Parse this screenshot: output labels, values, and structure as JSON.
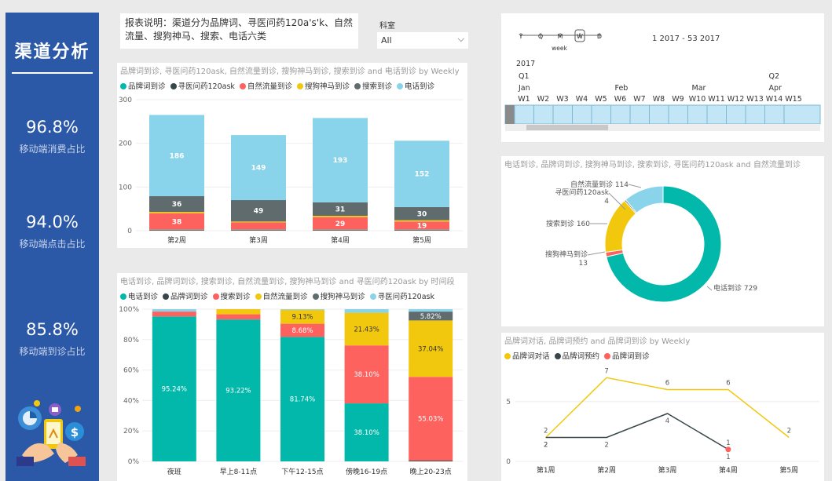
{
  "sidebar": {
    "title": "渠道分析",
    "kpis": [
      {
        "value": "96.8%",
        "label": "移动端消费占比"
      },
      {
        "value": "94.0%",
        "label": "移动端点击占比"
      },
      {
        "value": "85.8%",
        "label": "移动端到诊占比"
      }
    ]
  },
  "description": "报表说明：渠道分为品牌词、寻医问药120a's'k、自然流量、搜狗神马、搜索、电话六类",
  "filter": {
    "label": "科室",
    "value": "All"
  },
  "timeline": {
    "granularity": [
      "Y",
      "Q",
      "M",
      "W",
      "D"
    ],
    "active": "W",
    "unit": "week",
    "range": "1 2017 - 53 2017",
    "year": "2017",
    "quarters": [
      {
        "label": "Q1"
      },
      {
        "label": "Q2"
      }
    ],
    "months": [
      "Jan",
      "Feb",
      "Mar",
      "Apr"
    ],
    "weeks": [
      "W1",
      "W2",
      "W3",
      "W4",
      "W5",
      "W6",
      "W7",
      "W8",
      "W9",
      "W10",
      "W11",
      "W12",
      "W13",
      "W14",
      "W15"
    ]
  },
  "colors": {
    "teal": "#01b8aa",
    "dark": "#374649",
    "red": "#fd625e",
    "yellow": "#f2c80f",
    "gray": "#5f6b6d",
    "lightblue": "#8ad4eb"
  },
  "chart_data": [
    {
      "type": "bar",
      "title": "品牌词到诊, 寻医问药120ask, 自然流量到诊, 搜狗神马到诊, 搜索到诊 and 电话到诊 by Weekly",
      "categories": [
        "第2周",
        "第3周",
        "第4周",
        "第5周"
      ],
      "stacked": true,
      "ylim": [
        0,
        300
      ],
      "yticks": [
        0,
        100,
        200,
        300
      ],
      "series": [
        {
          "name": "品牌词到诊",
          "color": "#01b8aa",
          "values": [
            1,
            1,
            1,
            1
          ]
        },
        {
          "name": "寻医问药120ask",
          "color": "#374649",
          "values": [
            1,
            1,
            1,
            1
          ]
        },
        {
          "name": "自然流量到诊",
          "color": "#fd625e",
          "values": [
            38,
            17,
            29,
            19
          ],
          "labels": [
            "38",
            "",
            "29",
            "19"
          ]
        },
        {
          "name": "搜狗神马到诊",
          "color": "#f2c80f",
          "values": [
            3,
            2,
            3,
            3
          ]
        },
        {
          "name": "搜索到诊",
          "color": "#5f6b6d",
          "values": [
            36,
            49,
            31,
            30
          ],
          "labels": [
            "36",
            "49",
            "31",
            "30"
          ]
        },
        {
          "name": "电话到诊",
          "color": "#8ad4eb",
          "values": [
            186,
            149,
            193,
            152
          ],
          "labels": [
            "186",
            "149",
            "193",
            "152"
          ]
        }
      ]
    },
    {
      "type": "bar",
      "title": "电话到诊, 品牌词到诊, 搜索到诊, 自然流量到诊, 搜狗神马到诊 and 寻医问药120ask by 时间段",
      "categories": [
        "夜班",
        "早上8-11点",
        "下午12-15点",
        "傍晚16-19点",
        "晚上20-23点"
      ],
      "stacked": "percent",
      "yticks": [
        "0%",
        "20%",
        "40%",
        "60%",
        "80%",
        "100%"
      ],
      "series": [
        {
          "name": "电话到诊",
          "color": "#01b8aa",
          "values": [
            95.24,
            93.22,
            81.74,
            38.1,
            0
          ],
          "labels": [
            "95.24%",
            "93.22%",
            "81.74%",
            "38.10%",
            ""
          ]
        },
        {
          "name": "品牌词到诊",
          "color": "#374649",
          "values": [
            0,
            0,
            0,
            0,
            0.5
          ]
        },
        {
          "name": "搜索到诊",
          "color": "#fd625e",
          "values": [
            3.17,
            3.39,
            8.68,
            38.1,
            55.03
          ],
          "labels": [
            "",
            "",
            "8.68%",
            "38.10%",
            "55.03%"
          ]
        },
        {
          "name": "自然流量到诊",
          "color": "#f2c80f",
          "values": [
            0,
            3.39,
            9.13,
            21.43,
            37.04
          ],
          "labels": [
            "",
            "",
            "9.13%",
            "21.43%",
            "37.04%"
          ]
        },
        {
          "name": "搜狗神马到诊",
          "color": "#5f6b6d",
          "values": [
            0,
            0,
            0,
            0,
            5.82
          ],
          "labels": [
            "",
            "",
            "",
            "",
            "5.82%"
          ]
        },
        {
          "name": "寻医问药120ask",
          "color": "#8ad4eb",
          "values": [
            1.59,
            0,
            0.45,
            2.37,
            1.61
          ]
        }
      ]
    },
    {
      "type": "pie",
      "donut": true,
      "title": "电话到诊, 品牌词到诊, 搜狗神马到诊, 搜索到诊, 寻医问药120ask and 自然流量到诊",
      "slices": [
        {
          "name": "电话到诊",
          "value": 729,
          "color": "#01b8aa",
          "label": "电话到诊 729"
        },
        {
          "name": "搜狗神马到诊",
          "value": 13,
          "color": "#fd625e",
          "label": "搜狗神马到诊",
          "label2": "13"
        },
        {
          "name": "搜索到诊",
          "value": 160,
          "color": "#f2c80f",
          "label": "搜索到诊 160"
        },
        {
          "name": "寻医问药120ask",
          "value": 4,
          "color": "#374649",
          "label": "寻医问药120ask",
          "label2": "4"
        },
        {
          "name": "自然流量到诊",
          "value": 114,
          "color": "#8ad4eb",
          "label": "自然流量到诊 114"
        }
      ]
    },
    {
      "type": "line",
      "title": "品牌词对话, 品牌词预约 and 品牌词到诊 by Weekly",
      "categories": [
        "第1周",
        "第2周",
        "第3周",
        "第4周",
        "第5周"
      ],
      "ylim": [
        0,
        8
      ],
      "yticks": [
        0,
        5
      ],
      "series": [
        {
          "name": "品牌词对话",
          "color": "#f2c80f",
          "values": [
            2,
            7,
            6,
            6,
            2
          ],
          "labels": [
            "",
            "7",
            "6",
            "6",
            "2"
          ]
        },
        {
          "name": "品牌词预约",
          "color": "#374649",
          "values": [
            2,
            2,
            4,
            1,
            null
          ],
          "labels": [
            "2",
            "2",
            "4",
            "1",
            ""
          ]
        },
        {
          "name": "品牌词到诊",
          "color": "#fd625e",
          "values": [
            null,
            null,
            null,
            1,
            null
          ],
          "labels": [
            "",
            "",
            "",
            "1",
            ""
          ]
        }
      ],
      "extra_labels": [
        "2",
        "2"
      ]
    }
  ]
}
